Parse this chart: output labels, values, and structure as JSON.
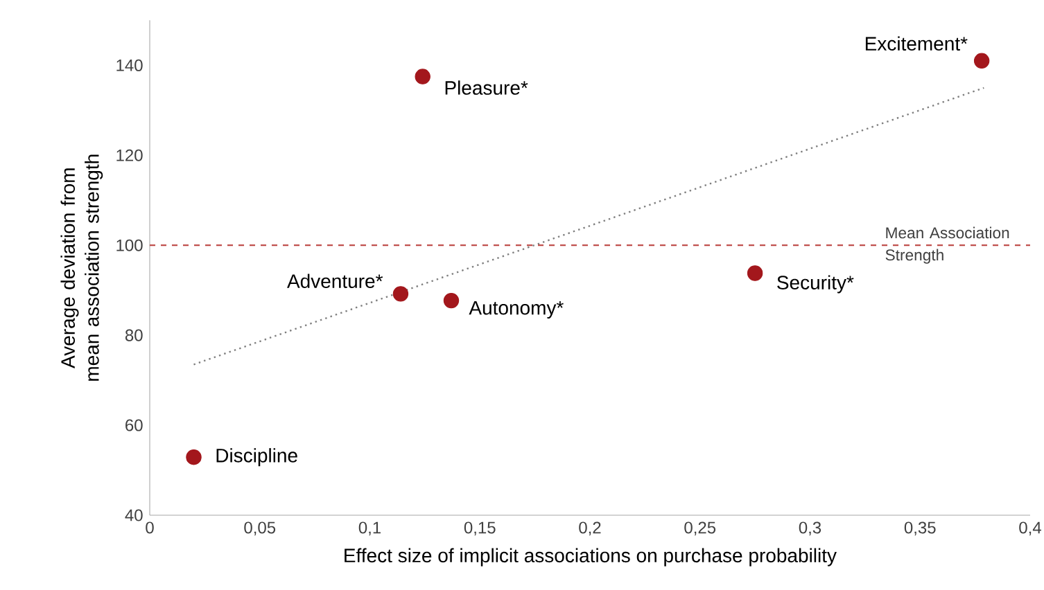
{
  "chart_data": {
    "type": "scatter",
    "xlabel": "Effect size of implicit associations on purchase probability",
    "ylabel": "Average deviation from mean association strength",
    "marker": "circle",
    "series": [
      {
        "color": "#a3171c",
        "x": [
          0.378,
          0.124,
          0.114,
          0.137,
          0.275,
          0.02
        ],
        "values": [
          141,
          137.5,
          89.2,
          87.7,
          93.8,
          52.9
        ]
      },
      {
        "type": "line",
        "color": "#7f7f7f",
        "line_style": "dotted",
        "marker": "none",
        "x": [
          0.02,
          0.379
        ],
        "values": [
          73.5,
          135
        ]
      }
    ],
    "annotations": [
      {
        "text": "Excitement*",
        "x": 0.378,
        "y": 141
      },
      {
        "text": "Pleasure*",
        "x": 0.124,
        "y": 137.5
      },
      {
        "text": "Adventure*",
        "x": 0.114,
        "y": 89.2
      },
      {
        "text": "Autonomy*",
        "x": 0.137,
        "y": 87.7
      },
      {
        "text": "Security*",
        "x": 0.275,
        "y": 93.8
      },
      {
        "text": "Discipline",
        "x": 0.02,
        "y": 52.9
      }
    ],
    "ref_lines": [
      {
        "axis": "y",
        "value": 100,
        "label": "Mean Association Strength",
        "color": "#c0504d",
        "line_style": "dashed"
      }
    ],
    "xlim": [
      0,
      0.4
    ],
    "xticks": [
      0,
      {
        "value": 0.05,
        "label": "0,05"
      },
      {
        "value": 0.1,
        "label": "0,1"
      },
      {
        "value": 0.15,
        "label": "0,15"
      },
      {
        "value": 0.2,
        "label": "0,2"
      },
      {
        "value": 0.25,
        "label": "0,25"
      },
      {
        "value": 0.3,
        "label": "0,3"
      },
      {
        "value": 0.35,
        "label": "0,35"
      },
      {
        "value": 0.4,
        "label": "0,4"
      }
    ],
    "ylim": [
      40,
      150
    ],
    "yticks": [
      40,
      60,
      80,
      100,
      120,
      140
    ]
  }
}
